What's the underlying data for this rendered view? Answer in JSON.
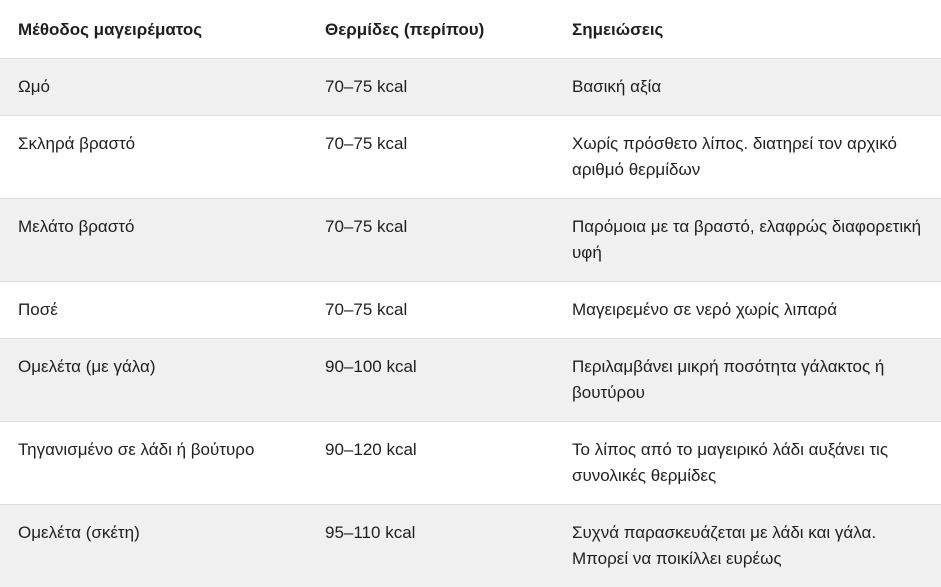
{
  "table": {
    "headers": [
      "Μέθοδος μαγειρέματος",
      "Θερμίδες (περίπου)",
      "Σημειώσεις"
    ],
    "rows": [
      [
        "Ωμό",
        "70–75 kcal",
        "Βασική αξία"
      ],
      [
        "Σκληρά βραστό",
        "70–75 kcal",
        "Χωρίς πρόσθετο λίπος. διατηρεί τον αρχικό αριθμό θερμίδων"
      ],
      [
        "Μελάτο βραστό",
        "70–75 kcal",
        "Παρόμοια με τα βραστό, ελαφρώς διαφορετική υφή"
      ],
      [
        "Ποσέ",
        "70–75 kcal",
        "Μαγειρεμένο σε νερό χωρίς λιπαρά"
      ],
      [
        "Ομελέτα (με γάλα)",
        "90–100 kcal",
        "Περιλαμβάνει μικρή ποσότητα γάλακτος ή βουτύρου"
      ],
      [
        "Τηγανισμένο σε λάδι ή βούτυρο",
        "90–120 kcal",
        "Το λίπος από το μαγειρικό λάδι αυξάνει τις συνολικές θερμίδες"
      ],
      [
        "Ομελέτα (σκέτη)",
        "95–110 kcal",
        "Συχνά παρασκευάζεται με λάδι και γάλα. Μπορεί να ποικίλλει ευρέως"
      ]
    ]
  }
}
